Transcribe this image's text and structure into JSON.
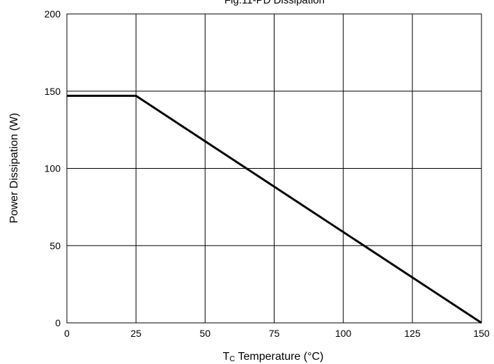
{
  "chart_data": {
    "type": "line",
    "title": "Fig.11-PD Dissipation",
    "xlabel_main": "T",
    "xlabel_sub": "C",
    "xlabel_rest": " Temperature (°C)",
    "ylabel": "Power Dissipation  (W)",
    "xlim": [
      0,
      150
    ],
    "ylim": [
      0,
      200
    ],
    "x_ticks": [
      0,
      25,
      50,
      75,
      100,
      125,
      150
    ],
    "y_ticks": [
      0,
      50,
      100,
      150,
      200
    ],
    "grid": true,
    "line_color": "#000000",
    "series": [
      {
        "x": [
          0,
          25,
          150
        ],
        "y": [
          147,
          147,
          0
        ]
      }
    ]
  }
}
